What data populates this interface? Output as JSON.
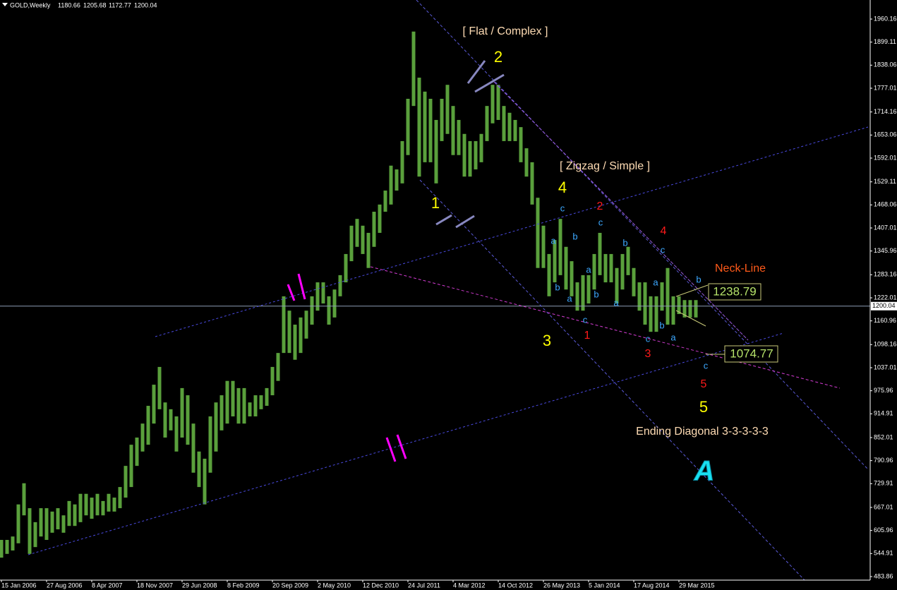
{
  "chart_data": {
    "type": "range-bar",
    "title": "GOLD,Weekly",
    "header_values": [
      1180.66,
      1205.68,
      1172.77,
      1200.04
    ],
    "color": "#5aa03c",
    "x_labels": [
      "15 Jan 2006",
      "27 Aug 2006",
      "8 Apr 2007",
      "18 Nov 2007",
      "29 Jun 2008",
      "8 Feb 2009",
      "20 Sep 2009",
      "2 May 2010",
      "12 Dec 2010",
      "24 Jul 2011",
      "4 Mar 2012",
      "14 Oct 2012",
      "26 May 2013",
      "5 Jan 2014",
      "17 Aug 2014",
      "29 Mar 2015"
    ],
    "high": [
      581,
      581,
      590,
      675,
      731,
      665,
      628,
      665,
      665,
      656,
      665,
      646,
      684,
      675,
      703,
      703,
      693,
      703,
      684,
      703,
      693,
      721,
      777,
      833,
      852,
      889,
      936,
      992,
      1039,
      945,
      927,
      908,
      983,
      964,
      889,
      815,
      796,
      908,
      945,
      964,
      1002,
      1002,
      983,
      983,
      945,
      964,
      964,
      983,
      1039,
      1076,
      1226,
      1188,
      1151,
      1170,
      1188,
      1226,
      1263,
      1263,
      1226,
      1244,
      1282,
      1338,
      1413,
      1431,
      1413,
      1394,
      1450,
      1469,
      1506,
      1572,
      1562,
      1637,
      1749,
      1927,
      1805,
      1768,
      1749,
      1693,
      1749,
      1786,
      1730,
      1693,
      1656,
      1637,
      1637,
      1656,
      1730,
      1786,
      1786,
      1730,
      1712,
      1693,
      1674,
      1618,
      1581,
      1487,
      1413,
      1338,
      1375,
      1431,
      1357,
      1319,
      1263,
      1282,
      1282,
      1338,
      1394,
      1338,
      1338,
      1301,
      1338,
      1357,
      1301,
      1263,
      1263,
      1226,
      1226,
      1263,
      1301,
      1226,
      1226,
      1216,
      1216,
      1216
    ],
    "low": [
      534,
      544,
      553,
      572,
      646,
      544,
      562,
      590,
      581,
      600,
      609,
      600,
      618,
      618,
      628,
      646,
      637,
      646,
      646,
      656,
      656,
      665,
      693,
      721,
      777,
      815,
      833,
      889,
      927,
      852,
      871,
      815,
      852,
      833,
      759,
      721,
      675,
      759,
      815,
      871,
      889,
      908,
      889,
      889,
      908,
      908,
      927,
      936,
      964,
      1002,
      1076,
      1076,
      1058,
      1076,
      1114,
      1151,
      1188,
      1207,
      1151,
      1170,
      1226,
      1263,
      1319,
      1357,
      1338,
      1301,
      1357,
      1394,
      1450,
      1469,
      1506,
      1525,
      1600,
      1730,
      1543,
      1581,
      1581,
      1525,
      1637,
      1656,
      1600,
      1600,
      1543,
      1543,
      1562,
      1581,
      1637,
      1684,
      1693,
      1637,
      1637,
      1637,
      1581,
      1543,
      1469,
      1301,
      1301,
      1226,
      1263,
      1282,
      1244,
      1226,
      1188,
      1188,
      1207,
      1244,
      1282,
      1263,
      1263,
      1207,
      1244,
      1282,
      1226,
      1188,
      1151,
      1132,
      1132,
      1188,
      1151,
      1151,
      1179,
      1170,
      1170,
      1170
    ],
    "ylim": [
      474.5,
      2010.6
    ],
    "yticks": [
      1960.16,
      1899.11,
      1838.06,
      1777.01,
      1714.16,
      1653.06,
      1592.01,
      1529.11,
      1468.06,
      1407.01,
      1345.96,
      1283.16,
      1222.01,
      1160.96,
      1098.16,
      1037.01,
      975.96,
      914.91,
      852.01,
      790.96,
      729.91,
      667.01,
      605.96,
      544.91,
      483.86
    ],
    "last_price": 1200.04,
    "price_labels": [
      1238.79,
      1074.77
    ],
    "annotations": [
      "[ Flat / Complex ]",
      "2",
      "[ Zigzag / Simple ]",
      "4",
      "1",
      "3",
      "5",
      "Ending Diagonal 3-3-3-3-3",
      "Neck-Line",
      "2",
      "4",
      "1",
      "3",
      "5"
    ],
    "wave_letters": [
      "c",
      "a",
      "b",
      "b",
      "a",
      "c",
      "a",
      "b",
      "c",
      "b",
      "a",
      "a",
      "c",
      "b",
      "a",
      "c",
      "b",
      "c"
    ],
    "logo": "A"
  }
}
